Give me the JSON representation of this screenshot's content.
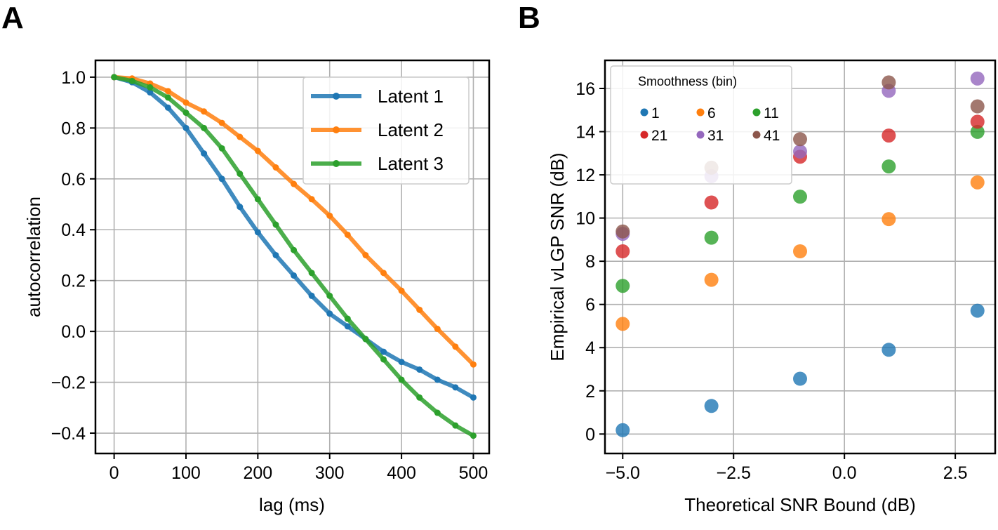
{
  "panels": [
    {
      "label": "A"
    },
    {
      "label": "B"
    }
  ],
  "chart_data": [
    {
      "type": "line",
      "panel": "A",
      "xlabel": "lag (ms)",
      "ylabel": "autocorrelation",
      "xlim": [
        -26,
        522
      ],
      "ylim": [
        -0.48,
        1.066
      ],
      "xticks": [
        0,
        100,
        200,
        300,
        400,
        500
      ],
      "xtick_labels": [
        "0",
        "100",
        "200",
        "300",
        "400",
        "500"
      ],
      "yticks": [
        1.0,
        0.8,
        0.6,
        0.4,
        0.2,
        0.0,
        -0.2,
        -0.4
      ],
      "ytick_labels": [
        "1.0",
        "0.8",
        "0.6",
        "0.4",
        "0.2",
        "0.0",
        "−0.2",
        "−0.4"
      ],
      "grid": true,
      "legend": "top-right",
      "x": [
        0,
        25,
        50,
        75,
        100,
        125,
        150,
        175,
        200,
        225,
        250,
        275,
        300,
        325,
        350,
        375,
        400,
        425,
        450,
        475,
        500
      ],
      "series": [
        {
          "name": "Latent 1",
          "color": "#1f77b4",
          "values": [
            1.0,
            0.98,
            0.94,
            0.88,
            0.8,
            0.7,
            0.6,
            0.49,
            0.39,
            0.3,
            0.22,
            0.14,
            0.07,
            0.02,
            -0.03,
            -0.08,
            -0.12,
            -0.15,
            -0.19,
            -0.22,
            -0.26
          ]
        },
        {
          "name": "Latent 2",
          "color": "#ff7f0e",
          "values": [
            1.0,
            0.995,
            0.975,
            0.945,
            0.9,
            0.865,
            0.82,
            0.765,
            0.71,
            0.645,
            0.58,
            0.52,
            0.455,
            0.38,
            0.3,
            0.23,
            0.16,
            0.085,
            0.01,
            -0.06,
            -0.13
          ]
        },
        {
          "name": "Latent 3",
          "color": "#2ca02c",
          "values": [
            1.0,
            0.985,
            0.96,
            0.92,
            0.86,
            0.8,
            0.72,
            0.62,
            0.52,
            0.42,
            0.32,
            0.23,
            0.14,
            0.05,
            -0.03,
            -0.11,
            -0.19,
            -0.26,
            -0.32,
            -0.37,
            -0.41
          ]
        }
      ]
    },
    {
      "type": "scatter",
      "panel": "B",
      "xlabel": "Theoretical SNR  Bound (dB)",
      "ylabel": "Empirical vLGP SNR (dB)",
      "xlim": [
        -5.4,
        3.4
      ],
      "ylim": [
        -0.9,
        17.3
      ],
      "xticks": [
        -5.0,
        -2.5,
        0.0,
        2.5
      ],
      "xtick_labels": [
        "−5.0",
        "−2.5",
        "0.0",
        "2.5"
      ],
      "yticks": [
        0,
        2,
        4,
        6,
        8,
        10,
        12,
        14,
        16
      ],
      "ytick_labels": [
        "0",
        "2",
        "4",
        "6",
        "8",
        "10",
        "12",
        "14",
        "16"
      ],
      "grid": true,
      "legend": "top-left",
      "legend_title": "Smoothness (bin)",
      "x": [
        -5,
        -3,
        -1,
        1,
        3
      ],
      "series": [
        {
          "name": "1",
          "color": "#1f77b4",
          "values": [
            0.18,
            1.3,
            2.56,
            3.9,
            5.71
          ]
        },
        {
          "name": "6",
          "color": "#ff7f0e",
          "values": [
            5.1,
            7.14,
            8.46,
            9.95,
            11.65
          ]
        },
        {
          "name": "11",
          "color": "#2ca02c",
          "values": [
            6.86,
            9.09,
            10.99,
            12.39,
            13.99
          ]
        },
        {
          "name": "21",
          "color": "#d62728",
          "values": [
            8.46,
            10.72,
            12.84,
            13.82,
            14.46
          ]
        },
        {
          "name": "31",
          "color": "#9467bd",
          "values": [
            9.27,
            11.94,
            13.08,
            15.89,
            16.46
          ]
        },
        {
          "name": "41",
          "color": "#8c564b",
          "values": [
            9.38,
            12.33,
            13.65,
            16.28,
            15.17
          ]
        }
      ]
    }
  ]
}
